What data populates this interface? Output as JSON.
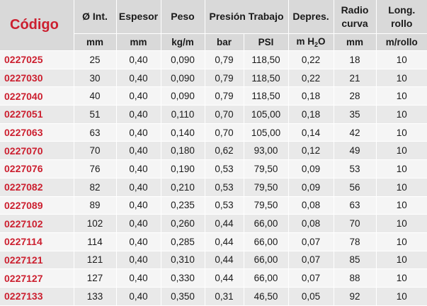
{
  "header": {
    "code": "Código",
    "diameter": "Ø Int.",
    "thickness": "Espesor",
    "weight": "Peso",
    "pressure": "Presión Trabajo",
    "depression": "Depres.",
    "radius": "Radio curva",
    "length": "Long. rollo"
  },
  "units": {
    "diameter": "mm",
    "thickness": "mm",
    "weight": "kg/m",
    "bar": "bar",
    "psi": "PSI",
    "depression_main": "m H",
    "depression_sub": "2",
    "depression_tail": "O",
    "radius": "mm",
    "length": "m/rollo"
  },
  "rows": [
    [
      "0227025",
      "25",
      "0,40",
      "0,090",
      "0,79",
      "118,50",
      "0,22",
      "18",
      "10"
    ],
    [
      "0227030",
      "30",
      "0,40",
      "0,090",
      "0,79",
      "118,50",
      "0,22",
      "21",
      "10"
    ],
    [
      "0227040",
      "40",
      "0,40",
      "0,090",
      "0,79",
      "118,50",
      "0,18",
      "28",
      "10"
    ],
    [
      "0227051",
      "51",
      "0,40",
      "0,110",
      "0,70",
      "105,00",
      "0,18",
      "35",
      "10"
    ],
    [
      "0227063",
      "63",
      "0,40",
      "0,140",
      "0,70",
      "105,00",
      "0,14",
      "42",
      "10"
    ],
    [
      "0227070",
      "70",
      "0,40",
      "0,180",
      "0,62",
      "93,00",
      "0,12",
      "49",
      "10"
    ],
    [
      "0227076",
      "76",
      "0,40",
      "0,190",
      "0,53",
      "79,50",
      "0,09",
      "53",
      "10"
    ],
    [
      "0227082",
      "82",
      "0,40",
      "0,210",
      "0,53",
      "79,50",
      "0,09",
      "56",
      "10"
    ],
    [
      "0227089",
      "89",
      "0,40",
      "0,235",
      "0,53",
      "79,50",
      "0,08",
      "63",
      "10"
    ],
    [
      "0227102",
      "102",
      "0,40",
      "0,260",
      "0,44",
      "66,00",
      "0,08",
      "70",
      "10"
    ],
    [
      "0227114",
      "114",
      "0,40",
      "0,285",
      "0,44",
      "66,00",
      "0,07",
      "78",
      "10"
    ],
    [
      "0227121",
      "121",
      "0,40",
      "0,310",
      "0,44",
      "66,00",
      "0,07",
      "85",
      "10"
    ],
    [
      "0227127",
      "127",
      "0,40",
      "0,330",
      "0,44",
      "66,00",
      "0,07",
      "88",
      "10"
    ],
    [
      "0227133",
      "133",
      "0,40",
      "0,350",
      "0,31",
      "46,50",
      "0,05",
      "92",
      "10"
    ]
  ]
}
